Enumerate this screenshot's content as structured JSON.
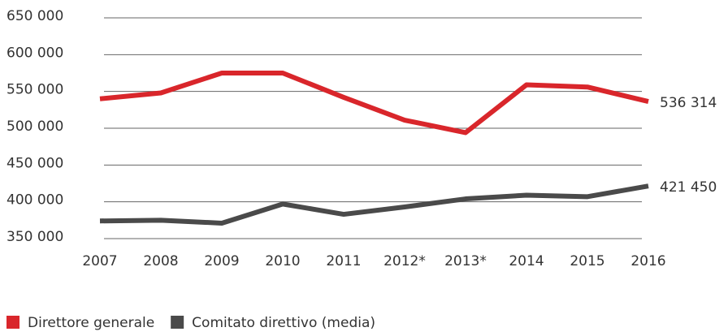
{
  "chart_data": {
    "type": "line",
    "categories": [
      "2007",
      "2008",
      "2009",
      "2010",
      "2011",
      "2012*",
      "2013*",
      "2014",
      "2015",
      "2016"
    ],
    "series": [
      {
        "name": "Direttore generale",
        "color": "#d9262b",
        "values": [
          540000,
          548000,
          575000,
          575000,
          542000,
          511000,
          494000,
          559000,
          556000,
          536314
        ],
        "value_labels": [
          null,
          null,
          null,
          null,
          null,
          null,
          null,
          null,
          null,
          "536 314"
        ]
      },
      {
        "name": "Comitato direttivo (media)",
        "color": "#4a4a4a",
        "values": [
          374000,
          375000,
          371000,
          397000,
          383000,
          393000,
          404000,
          409000,
          407000,
          421450
        ],
        "value_labels": [
          null,
          null,
          null,
          null,
          null,
          null,
          null,
          null,
          null,
          "421 450"
        ]
      }
    ],
    "ylim": [
      350000,
      650000
    ],
    "yticks": [
      {
        "value": 350000,
        "label": "350 000"
      },
      {
        "value": 400000,
        "label": "400 000"
      },
      {
        "value": 450000,
        "label": "450 000"
      },
      {
        "value": 500000,
        "label": "500 000"
      },
      {
        "value": 550000,
        "label": "550 000"
      },
      {
        "value": 600000,
        "label": "600 000"
      },
      {
        "value": 650000,
        "label": "650 000"
      }
    ],
    "grid": true,
    "legend": "bottom-left"
  }
}
